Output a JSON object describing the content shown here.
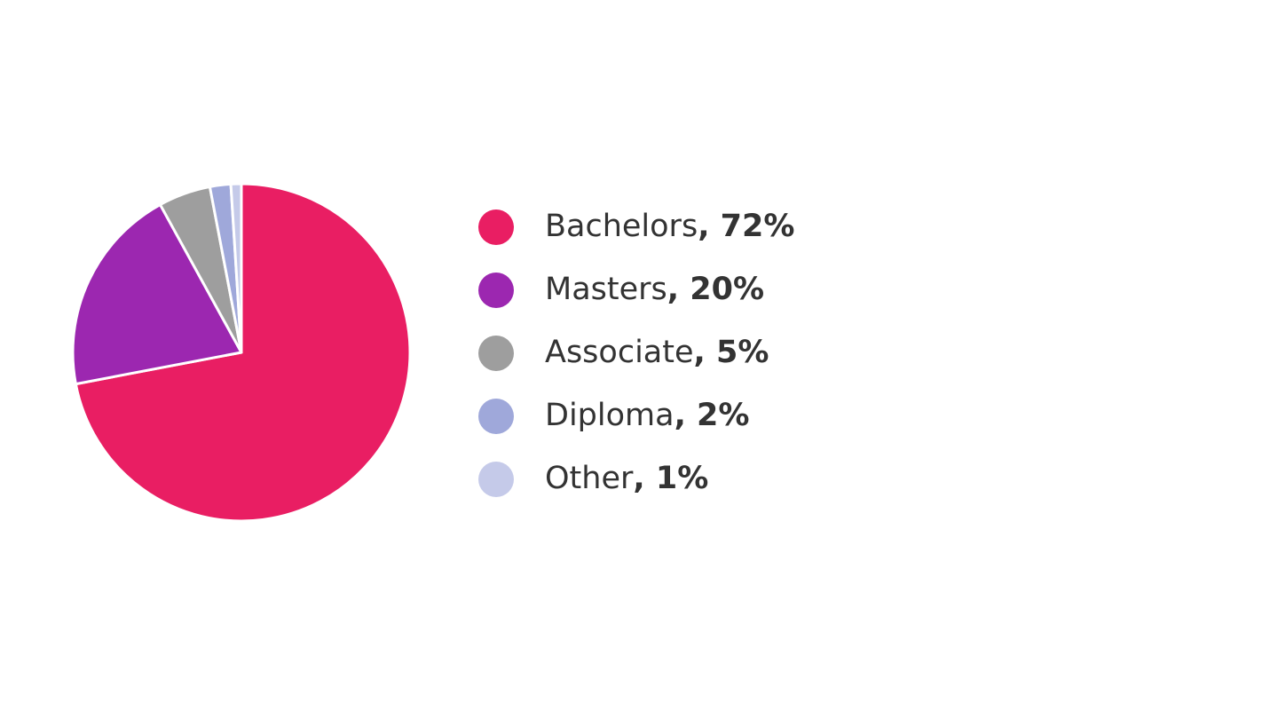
{
  "chart_data": {
    "type": "pie",
    "categories": [
      "Bachelors",
      "Masters",
      "Associate",
      "Diploma",
      "Other"
    ],
    "values": [
      72,
      20,
      5,
      2,
      1
    ],
    "value_labels": [
      ", 72%",
      ", 20%",
      ", 5%",
      ", 2%",
      ", 1%"
    ],
    "colors": [
      "#e91e63",
      "#9c27b0",
      "#9e9e9e",
      "#9fa8da",
      "#c5cae9"
    ]
  }
}
